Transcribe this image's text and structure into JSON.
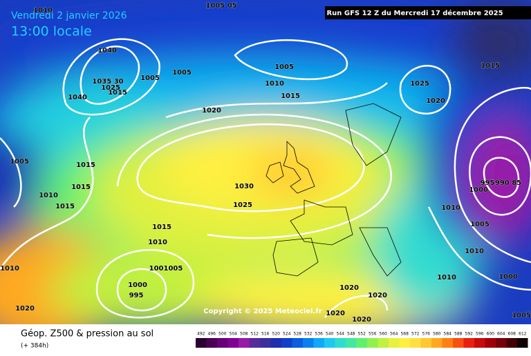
{
  "header": {
    "date": "Vendredi 2 janvier 2026",
    "time": "13:00 locale",
    "run": "Run GFS 12 Z du Mercredi 17 décembre 2025",
    "copyright": "Copyright © 2025 Meteociel.fr"
  },
  "footer": {
    "title": "Géop. Z500 & pression au sol",
    "lead": "(+ 384h)"
  },
  "isobar_labels": [
    "1010",
    "1005 05",
    "1040",
    "1005",
    "1005",
    "1035 30",
    "1025",
    "1015",
    "1040",
    "1020",
    "1010",
    "1015",
    "1005",
    "1025",
    "1020",
    "1015",
    "1005",
    "1015",
    "1015",
    "1010",
    "1015",
    "1030",
    "1025",
    "1015",
    "1010",
    "1001005",
    "1000",
    "995",
    "1010",
    "1020",
    "995",
    "990 85",
    "1000",
    "1010",
    "1005",
    "1010",
    "1010",
    "1000",
    "1005",
    "1020",
    "1020",
    "1020",
    "1020"
  ],
  "scale": {
    "values": [
      492,
      496,
      500,
      504,
      508,
      512,
      516,
      520,
      524,
      528,
      532,
      536,
      540,
      544,
      548,
      552,
      556,
      560,
      564,
      568,
      572,
      576,
      580,
      584,
      588,
      592,
      596,
      600,
      604,
      608,
      612
    ],
    "colors": [
      "#2b0033",
      "#4a0055",
      "#660077",
      "#800094",
      "#991aa8",
      "#5a2a9a",
      "#3b2f9e",
      "#1f2fb0",
      "#1040c8",
      "#0a5ee0",
      "#0a80f0",
      "#10a8f8",
      "#20c8f0",
      "#30dcd0",
      "#40e8a0",
      "#60f070",
      "#90f050",
      "#c0f040",
      "#e8f040",
      "#fff040",
      "#ffe040",
      "#ffc830",
      "#ffa820",
      "#ff8010",
      "#f85010",
      "#e82010",
      "#c80a0a",
      "#a00008",
      "#780008",
      "#400004",
      "#100000"
    ]
  }
}
